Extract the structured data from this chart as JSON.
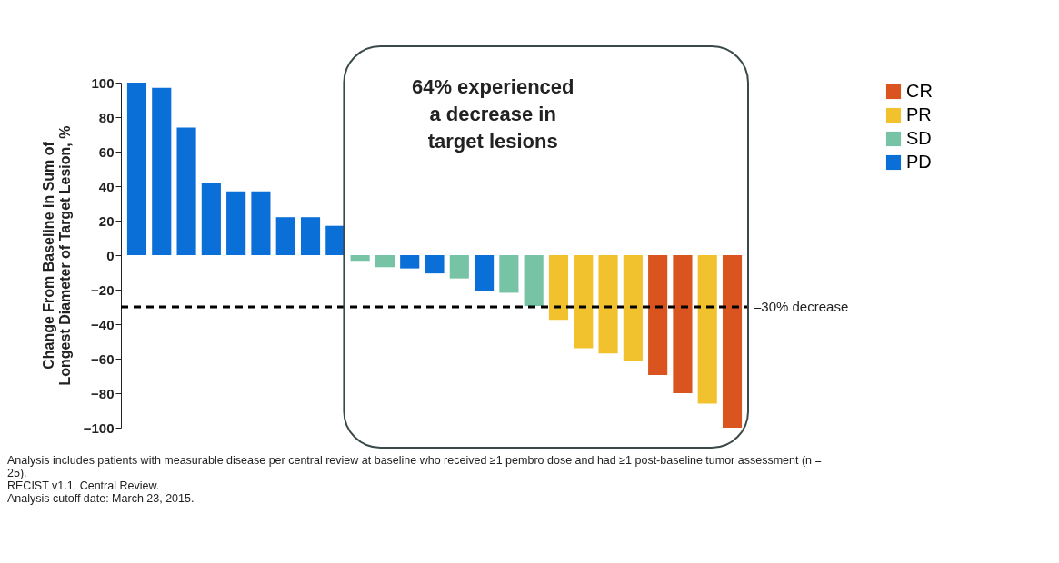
{
  "chart_data": {
    "type": "bar",
    "ylabel": "Change From Baseline in Sum of\nLongest Diameter of Target Lesion, %",
    "categories": [
      null,
      null,
      null,
      null,
      null,
      null,
      null,
      null,
      null,
      null,
      null,
      null,
      null,
      null,
      null,
      null,
      null,
      null,
      null,
      null,
      null,
      null,
      null,
      null,
      null
    ],
    "series": [
      {
        "name": "CR",
        "color": "#d9541e",
        "values": [
          null,
          null,
          null,
          null,
          null,
          null,
          null,
          null,
          null,
          null,
          null,
          null,
          null,
          null,
          null,
          null,
          null,
          null,
          null,
          null,
          null,
          -69.5,
          -80,
          null,
          -100
        ]
      },
      {
        "name": "PR",
        "color": "#f2c12e",
        "values": [
          null,
          null,
          null,
          null,
          null,
          null,
          null,
          null,
          null,
          null,
          null,
          null,
          null,
          null,
          null,
          null,
          null,
          -37.5,
          -54,
          -57,
          -61.5,
          null,
          null,
          -86,
          null
        ]
      },
      {
        "name": "SD",
        "color": "#76c3a5",
        "values": [
          null,
          null,
          null,
          null,
          null,
          null,
          null,
          null,
          null,
          -3.3,
          -7,
          null,
          null,
          -13.5,
          null,
          -21.8,
          -29.5,
          null,
          null,
          null,
          null,
          null,
          null,
          null,
          null
        ]
      },
      {
        "name": "PD",
        "color": "#0a6fd6",
        "values": [
          100,
          97,
          74,
          42,
          37,
          37,
          22,
          22,
          17,
          null,
          null,
          -7.7,
          -10.6,
          null,
          -21,
          null,
          null,
          null,
          null,
          null,
          null,
          null,
          null,
          null,
          null
        ]
      }
    ],
    "ylim": [
      -100,
      100
    ],
    "yticks": [
      -100,
      -80,
      -60,
      -40,
      -20,
      0,
      20,
      40,
      60,
      80,
      100
    ],
    "ref_lines": [
      {
        "axis": "y",
        "value": -30,
        "label": "–30% decrease",
        "color": "#000000",
        "line_style": "dashed"
      }
    ],
    "legend": "top right",
    "annotations": [
      "64% experienced\na decrease in\ntarget lesions",
      "Analysis includes patients with measurable disease per central review at baseline who received ≥1 pembro dose and had ≥1 post-baseline tumor assessment (n = 25).",
      "RECIST v1.1, Central Review.",
      "Analysis cutoff date: March 23, 2015."
    ]
  }
}
